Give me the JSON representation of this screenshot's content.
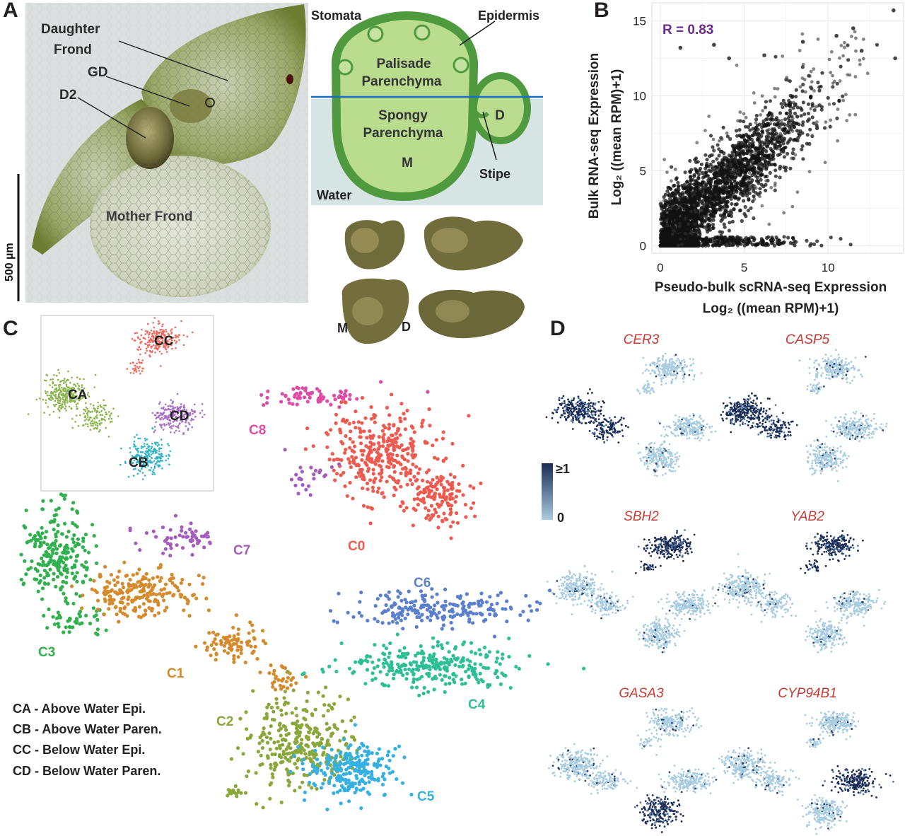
{
  "panels": {
    "a": "A",
    "b": "B",
    "c": "C",
    "d": "D"
  },
  "panel_a": {
    "photo_labels": {
      "daughter_line1": "Daughter",
      "daughter_line2": "Frond",
      "gd": "GD",
      "d2": "D2",
      "mother": "Mother Frond",
      "scale": "500 µm"
    },
    "diagram_labels": {
      "stomata": "Stomata",
      "epidermis": "Epidermis",
      "palisade_1": "Palisade",
      "palisade_2": "Parenchyma",
      "spongy_1": "Spongy",
      "spongy_2": "Parenchyma",
      "m": "M",
      "d": "D",
      "stipe": "Stipe",
      "water": "Water"
    },
    "small_photo_labels": {
      "m": "M",
      "d": "D"
    },
    "colors": {
      "diagram_dark": "#4f9a3e",
      "diagram_fill": "#b8dc8e",
      "water": "#d6e4e3",
      "water_line": "#1a6cc0"
    }
  },
  "chart_data": [
    {
      "type": "scatter",
      "panel": "B",
      "annotation": "R = 0.83",
      "xlabel_line1": "Pseudo-bulk scRNA-seq Expression",
      "xlabel_line2": "Log₂ ((mean RPM)+1)",
      "ylabel_line1": "Bulk RNA-seq Expression",
      "ylabel_line2": "Log₂ ((mean RPM)+1)",
      "xlim": [
        -0.5,
        14.5
      ],
      "ylim": [
        -0.5,
        16.2
      ],
      "xticks": [
        "0",
        "5",
        "10"
      ],
      "yticks": [
        "0",
        "5",
        "10",
        "15"
      ],
      "grid": true,
      "correlation": 0.83,
      "outliers": [
        [
          13.9,
          15.7
        ],
        [
          11.5,
          14.5
        ],
        [
          1.2,
          13.2
        ],
        [
          3.2,
          13.4
        ],
        [
          4.1,
          12.5
        ],
        [
          6.2,
          12.7
        ],
        [
          10.5,
          14.0
        ],
        [
          12.0,
          13.0
        ],
        [
          14.0,
          12.5
        ],
        [
          8.5,
          13.6
        ]
      ]
    },
    {
      "type": "scatter",
      "panel": "C",
      "series": [
        {
          "name": "C0",
          "color": "#ee5a4f"
        },
        {
          "name": "C1",
          "color": "#d58a2b"
        },
        {
          "name": "C2",
          "color": "#8aa83a"
        },
        {
          "name": "C3",
          "color": "#31b04e"
        },
        {
          "name": "C4",
          "color": "#2dbf96"
        },
        {
          "name": "C5",
          "color": "#34b0e2"
        },
        {
          "name": "C6",
          "color": "#5b7fcf"
        },
        {
          "name": "C7",
          "color": "#a55dbd"
        },
        {
          "name": "C8",
          "color": "#e04ba5"
        }
      ],
      "inset_series": [
        {
          "name": "CA",
          "color": "#8ab44a"
        },
        {
          "name": "CB",
          "color": "#31b4c4"
        },
        {
          "name": "CC",
          "color": "#ee6a5e"
        },
        {
          "name": "CD",
          "color": "#a86dc6"
        }
      ],
      "legend": [
        "CA - Above Water Epi.",
        "CB - Above Water Paren.",
        "CC - Below Water Epi.",
        "CD - Below Water Paren."
      ]
    },
    {
      "type": "scatter",
      "panel": "D",
      "genes": [
        "CER3",
        "CASP5",
        "SBH2",
        "YAB2",
        "GASA3",
        "CYP94B1"
      ],
      "highlight_cluster": [
        "CA",
        "CA",
        "CC",
        "CC",
        "CB",
        "CD"
      ],
      "colorbar": {
        "max": "≥1",
        "min": "0",
        "low_color": "#a8cce0",
        "high_color": "#1a2c55"
      }
    }
  ]
}
